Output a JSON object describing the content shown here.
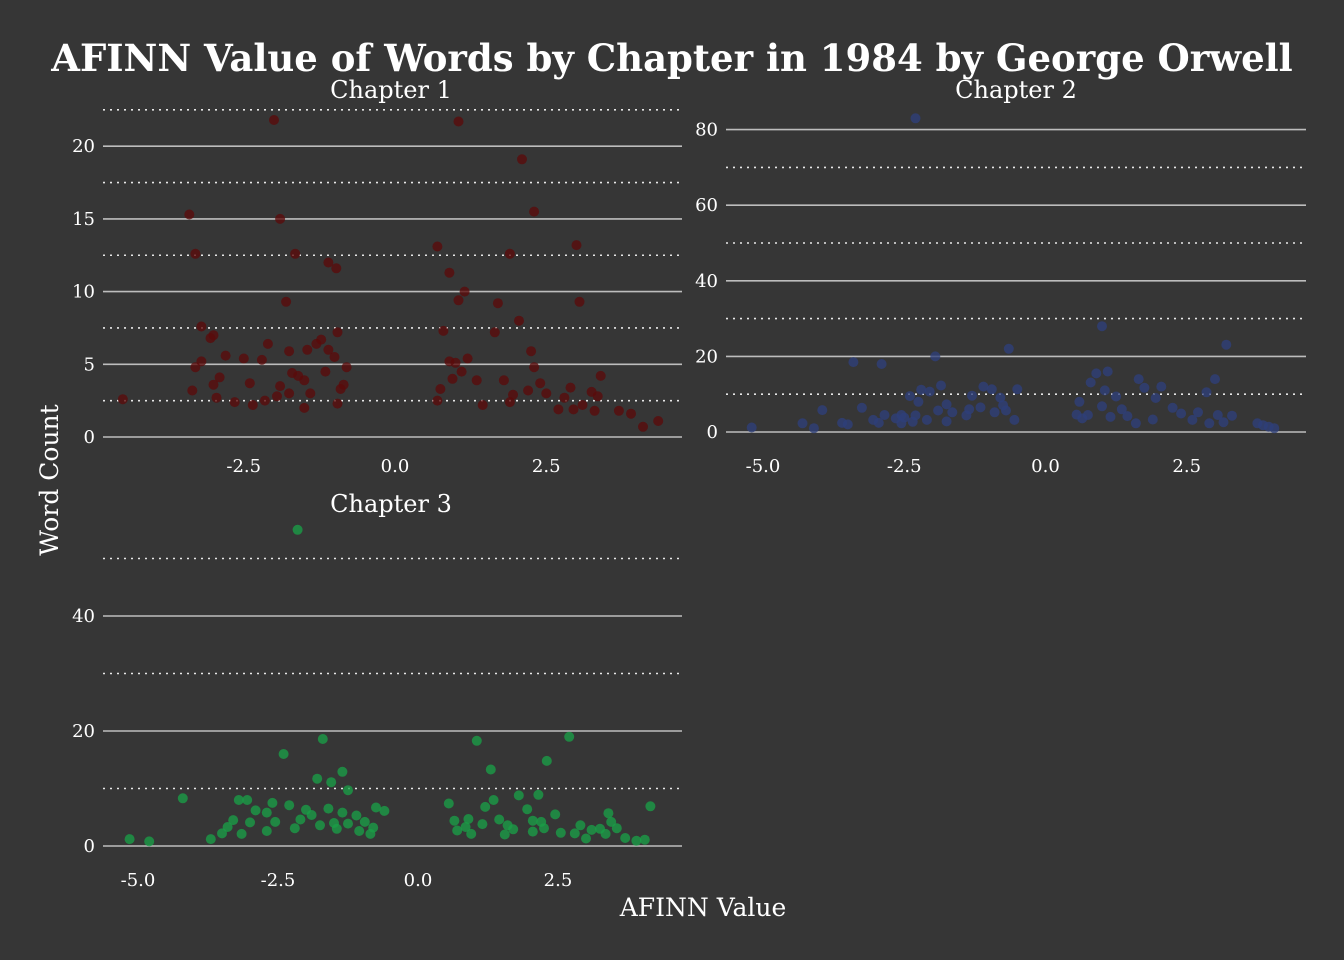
{
  "title": "AFINN Value of Words by Chapter in 1984 by George Orwell",
  "x_axis_label": "AFINN Value",
  "y_axis_label": "Word Count",
  "chart_data": {
    "type": "scatter",
    "title": "AFINN Value of Words by Chapter in 1984 by George Orwell",
    "xlabel": "AFINN Value",
    "ylabel": "Word Count",
    "grid": "major solid, minor dotted (horizontal only)",
    "jitter": "points jittered horizontally around integer AFINN values",
    "panels": [
      {
        "name": "Chapter 1",
        "color": "#5a0a0a",
        "xlim": [
          -4.5,
          4.5
        ],
        "ylim": [
          0,
          22
        ],
        "x_ticks": [
          -2.5,
          0.0,
          2.5
        ],
        "y_ticks": [
          0,
          5,
          10,
          15,
          20
        ],
        "y_minor": [
          2.5,
          7.5,
          12.5,
          17.5,
          22.5
        ],
        "points": [
          [
            -4.5,
            2.6
          ],
          [
            -3.4,
            15.3
          ],
          [
            -3.3,
            12.6
          ],
          [
            -3.2,
            7.6
          ],
          [
            -3.05,
            6.8
          ],
          [
            -3.2,
            5.2
          ],
          [
            -3.3,
            4.8
          ],
          [
            -2.9,
            4.1
          ],
          [
            -2.8,
            5.6
          ],
          [
            -3.0,
            7.0
          ],
          [
            -2.5,
            5.4
          ],
          [
            -2.4,
            3.7
          ],
          [
            -2.35,
            2.2
          ],
          [
            -2.0,
            21.8
          ],
          [
            -1.9,
            15.0
          ],
          [
            -1.65,
            12.6
          ],
          [
            -1.8,
            9.3
          ],
          [
            -2.1,
            6.4
          ],
          [
            -2.2,
            5.3
          ],
          [
            -1.75,
            5.9
          ],
          [
            -1.6,
            4.2
          ],
          [
            -1.9,
            3.5
          ],
          [
            -1.95,
            2.8
          ],
          [
            -1.1,
            12.0
          ],
          [
            -0.97,
            11.6
          ],
          [
            -1.3,
            6.4
          ],
          [
            -1.22,
            6.7
          ],
          [
            -1.1,
            6.0
          ],
          [
            -0.95,
            7.2
          ],
          [
            -0.8,
            4.8
          ],
          [
            -1.0,
            5.5
          ],
          [
            -1.15,
            4.5
          ],
          [
            -0.9,
            3.3
          ],
          [
            -1.4,
            3.0
          ],
          [
            -0.95,
            2.3
          ],
          [
            0.7,
            13.1
          ],
          [
            0.9,
            11.3
          ],
          [
            1.05,
            21.7
          ],
          [
            1.15,
            10.0
          ],
          [
            1.05,
            9.4
          ],
          [
            0.8,
            7.3
          ],
          [
            1.2,
            5.4
          ],
          [
            0.9,
            5.2
          ],
          [
            1.0,
            5.1
          ],
          [
            1.1,
            4.5
          ],
          [
            0.95,
            4.0
          ],
          [
            0.75,
            3.3
          ],
          [
            0.7,
            2.5
          ],
          [
            1.7,
            9.2
          ],
          [
            1.65,
            7.2
          ],
          [
            2.1,
            19.1
          ],
          [
            2.3,
            15.5
          ],
          [
            1.9,
            12.6
          ],
          [
            2.05,
            8.0
          ],
          [
            2.3,
            4.8
          ],
          [
            2.4,
            3.7
          ],
          [
            2.2,
            3.2
          ],
          [
            1.95,
            2.9
          ],
          [
            1.9,
            2.4
          ],
          [
            2.5,
            3.0
          ],
          [
            3.0,
            13.2
          ],
          [
            3.05,
            9.3
          ],
          [
            2.9,
            3.4
          ],
          [
            2.8,
            2.7
          ],
          [
            3.25,
            3.1
          ],
          [
            3.35,
            2.8
          ],
          [
            3.4,
            4.2
          ],
          [
            3.7,
            1.8
          ],
          [
            3.9,
            1.6
          ],
          [
            4.1,
            0.7
          ],
          [
            4.35,
            1.1
          ],
          [
            3.3,
            1.8
          ],
          [
            3.1,
            2.2
          ],
          [
            2.7,
            1.9
          ],
          [
            2.95,
            1.9
          ],
          [
            -3.0,
            3.6
          ],
          [
            -2.65,
            2.4
          ],
          [
            -2.15,
            2.5
          ],
          [
            -1.7,
            4.4
          ],
          [
            -1.45,
            6.0
          ],
          [
            -1.5,
            3.9
          ],
          [
            -0.85,
            3.6
          ],
          [
            -3.35,
            3.2
          ],
          [
            -2.95,
            2.7
          ],
          [
            -1.75,
            3.0
          ],
          [
            -1.5,
            2.0
          ],
          [
            1.35,
            3.9
          ],
          [
            1.45,
            2.2
          ],
          [
            1.8,
            3.9
          ],
          [
            2.25,
            5.9
          ]
        ]
      },
      {
        "name": "Chapter 2",
        "color": "#2e3f7a",
        "xlim": [
          -5.2,
          4.2
        ],
        "ylim": [
          0,
          83
        ],
        "x_ticks": [
          -5.0,
          -2.5,
          0.0,
          2.5
        ],
        "y_ticks": [
          0,
          20,
          40,
          60,
          80
        ],
        "y_minor": [
          10,
          30,
          50,
          70
        ],
        "points": [
          [
            -5.2,
            1.2
          ],
          [
            -4.3,
            2.3
          ],
          [
            -4.1,
            1.0
          ],
          [
            -3.95,
            5.8
          ],
          [
            -3.6,
            2.4
          ],
          [
            -3.4,
            18.5
          ],
          [
            -3.25,
            6.4
          ],
          [
            -2.9,
            18.0
          ],
          [
            -2.3,
            83.0
          ],
          [
            -2.55,
            4.5
          ],
          [
            -2.4,
            9.5
          ],
          [
            -2.25,
            8.0
          ],
          [
            -2.2,
            11.2
          ],
          [
            -2.05,
            10.7
          ],
          [
            -1.95,
            20.0
          ],
          [
            -1.85,
            12.3
          ],
          [
            -1.75,
            7.3
          ],
          [
            -1.65,
            5.2
          ],
          [
            -2.5,
            3.8
          ],
          [
            -2.35,
            2.7
          ],
          [
            -2.1,
            3.2
          ],
          [
            -1.3,
            9.6
          ],
          [
            -1.1,
            12.0
          ],
          [
            -0.95,
            11.3
          ],
          [
            -0.8,
            9.1
          ],
          [
            -0.65,
            22.0
          ],
          [
            -0.5,
            11.3
          ],
          [
            -0.7,
            5.7
          ],
          [
            -0.9,
            5.2
          ],
          [
            -1.15,
            6.5
          ],
          [
            -1.4,
            4.4
          ],
          [
            0.6,
            8.0
          ],
          [
            0.8,
            13.1
          ],
          [
            0.9,
            15.5
          ],
          [
            1.0,
            28.0
          ],
          [
            1.1,
            16.0
          ],
          [
            1.05,
            11.0
          ],
          [
            0.75,
            4.5
          ],
          [
            1.0,
            6.8
          ],
          [
            1.25,
            9.4
          ],
          [
            1.35,
            6.0
          ],
          [
            1.65,
            14.0
          ],
          [
            1.75,
            11.7
          ],
          [
            1.95,
            9.0
          ],
          [
            2.05,
            12.0
          ],
          [
            2.25,
            6.4
          ],
          [
            2.4,
            4.9
          ],
          [
            2.7,
            5.2
          ],
          [
            2.85,
            10.5
          ],
          [
            3.0,
            14.0
          ],
          [
            3.2,
            23.1
          ],
          [
            3.05,
            4.5
          ],
          [
            2.9,
            2.3
          ],
          [
            3.15,
            2.6
          ],
          [
            3.3,
            4.3
          ],
          [
            3.75,
            2.3
          ],
          [
            3.85,
            1.8
          ],
          [
            3.95,
            1.4
          ],
          [
            4.05,
            1.0
          ],
          [
            1.9,
            3.3
          ],
          [
            1.45,
            4.2
          ],
          [
            0.55,
            4.6
          ],
          [
            -3.05,
            3.2
          ],
          [
            -2.85,
            4.5
          ],
          [
            -2.3,
            4.4
          ],
          [
            -1.9,
            5.7
          ],
          [
            -1.35,
            6.0
          ],
          [
            -0.75,
            7.1
          ],
          [
            0.65,
            3.6
          ],
          [
            1.15,
            4.0
          ],
          [
            1.6,
            2.3
          ],
          [
            2.6,
            3.2
          ],
          [
            -2.55,
            2.3
          ],
          [
            -2.95,
            2.4
          ],
          [
            -3.5,
            2.0
          ],
          [
            -2.65,
            3.6
          ],
          [
            -1.75,
            2.8
          ],
          [
            -0.55,
            3.2
          ]
        ]
      },
      {
        "name": "Chapter 3",
        "color": "#1a9e47",
        "xlim": [
          -5.2,
          4.2
        ],
        "ylim": [
          0,
          55
        ],
        "x_ticks": [
          -5.0,
          -2.5,
          0.0,
          2.5
        ],
        "y_ticks": [
          0,
          20,
          40
        ],
        "y_minor": [
          10,
          30,
          50
        ],
        "points": [
          [
            -5.15,
            1.2
          ],
          [
            -4.8,
            0.8
          ],
          [
            -4.2,
            8.3
          ],
          [
            -3.7,
            1.2
          ],
          [
            -3.5,
            2.2
          ],
          [
            -3.2,
            8.0
          ],
          [
            -3.05,
            8.0
          ],
          [
            -3.3,
            4.5
          ],
          [
            -2.9,
            6.2
          ],
          [
            -2.7,
            5.8
          ],
          [
            -2.6,
            7.5
          ],
          [
            -2.4,
            16.0
          ],
          [
            -2.15,
            55.0
          ],
          [
            -2.3,
            7.1
          ],
          [
            -2.0,
            6.3
          ],
          [
            -1.8,
            11.7
          ],
          [
            -1.7,
            18.6
          ],
          [
            -1.55,
            11.1
          ],
          [
            -1.6,
            6.5
          ],
          [
            -1.9,
            5.4
          ],
          [
            -1.35,
            12.9
          ],
          [
            -1.25,
            9.7
          ],
          [
            -1.1,
            5.3
          ],
          [
            -1.35,
            5.8
          ],
          [
            -0.95,
            4.2
          ],
          [
            -0.75,
            6.7
          ],
          [
            -0.6,
            6.1
          ],
          [
            -0.8,
            3.2
          ],
          [
            -1.25,
            3.9
          ],
          [
            -1.5,
            4.0
          ],
          [
            0.55,
            7.4
          ],
          [
            0.65,
            4.4
          ],
          [
            0.9,
            4.7
          ],
          [
            1.05,
            18.3
          ],
          [
            1.3,
            13.3
          ],
          [
            1.35,
            8.0
          ],
          [
            1.2,
            6.8
          ],
          [
            1.45,
            4.6
          ],
          [
            1.6,
            3.6
          ],
          [
            0.85,
            3.3
          ],
          [
            1.8,
            8.8
          ],
          [
            1.95,
            6.4
          ],
          [
            2.05,
            4.4
          ],
          [
            2.15,
            8.9
          ],
          [
            2.3,
            14.8
          ],
          [
            2.7,
            19.0
          ],
          [
            2.45,
            5.5
          ],
          [
            2.25,
            3.1
          ],
          [
            2.9,
            3.6
          ],
          [
            3.1,
            2.8
          ],
          [
            3.25,
            3.0
          ],
          [
            3.4,
            5.7
          ],
          [
            3.45,
            4.2
          ],
          [
            3.55,
            3.1
          ],
          [
            3.7,
            1.4
          ],
          [
            3.9,
            0.9
          ],
          [
            4.05,
            1.1
          ],
          [
            4.15,
            6.9
          ],
          [
            3.35,
            2.1
          ],
          [
            2.8,
            2.2
          ],
          [
            -3.4,
            3.3
          ],
          [
            -3.0,
            4.1
          ],
          [
            -2.55,
            4.2
          ],
          [
            -2.1,
            4.6
          ],
          [
            -1.45,
            3.0
          ],
          [
            -0.85,
            2.1
          ],
          [
            0.7,
            2.7
          ],
          [
            1.15,
            3.8
          ],
          [
            1.7,
            2.9
          ],
          [
            2.2,
            4.2
          ],
          [
            -3.15,
            2.1
          ],
          [
            -2.7,
            2.6
          ],
          [
            -2.2,
            3.1
          ],
          [
            -1.75,
            3.6
          ],
          [
            -1.05,
            2.6
          ],
          [
            0.95,
            2.1
          ],
          [
            1.55,
            2.0
          ],
          [
            2.05,
            2.5
          ],
          [
            2.55,
            2.3
          ],
          [
            3.0,
            1.3
          ]
        ]
      }
    ]
  }
}
